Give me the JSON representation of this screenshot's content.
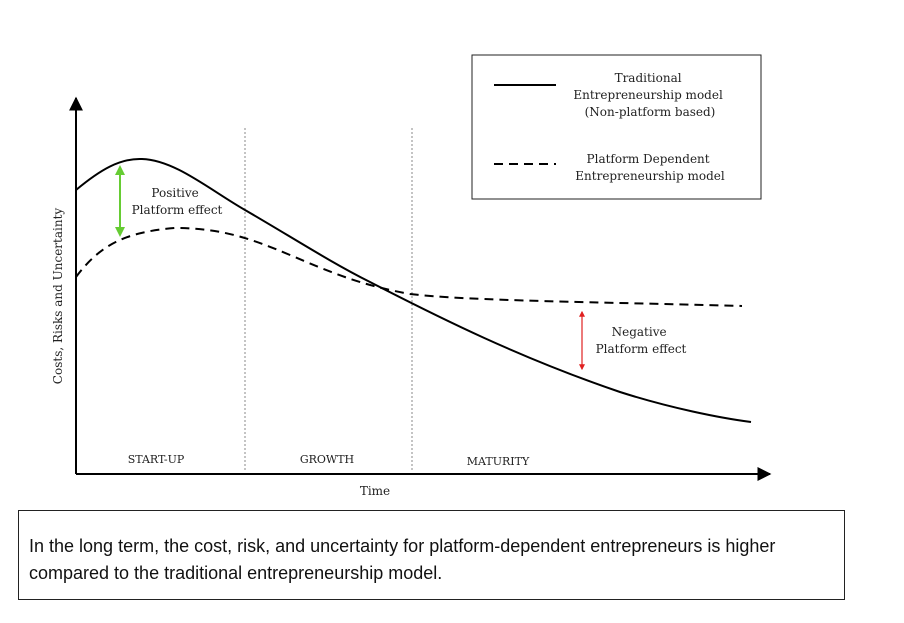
{
  "diagram": {
    "y_axis_label": "Costs, Risks and Uncertainty",
    "x_axis_label": "Time",
    "phases": [
      "START-UP",
      "GROWTH",
      "MATURITY"
    ],
    "legend": {
      "traditional": [
        "Traditional",
        "Entrepreneurship model",
        "(Non-platform based)"
      ],
      "platform": [
        "Platform Dependent",
        "Entrepreneurship model"
      ]
    },
    "annotations": {
      "positive": [
        "Positive",
        "Platform effect"
      ],
      "negative": [
        "Negative",
        "Platform effect"
      ]
    },
    "colors": {
      "positive_arrow": "#66cc33",
      "negative_arrow": "#e02020",
      "curves": "#000000"
    }
  },
  "caption": "In the long term, the cost, risk, and uncertainty for platform-dependent entrepreneurs is higher compared to the traditional entrepreneurship model."
}
